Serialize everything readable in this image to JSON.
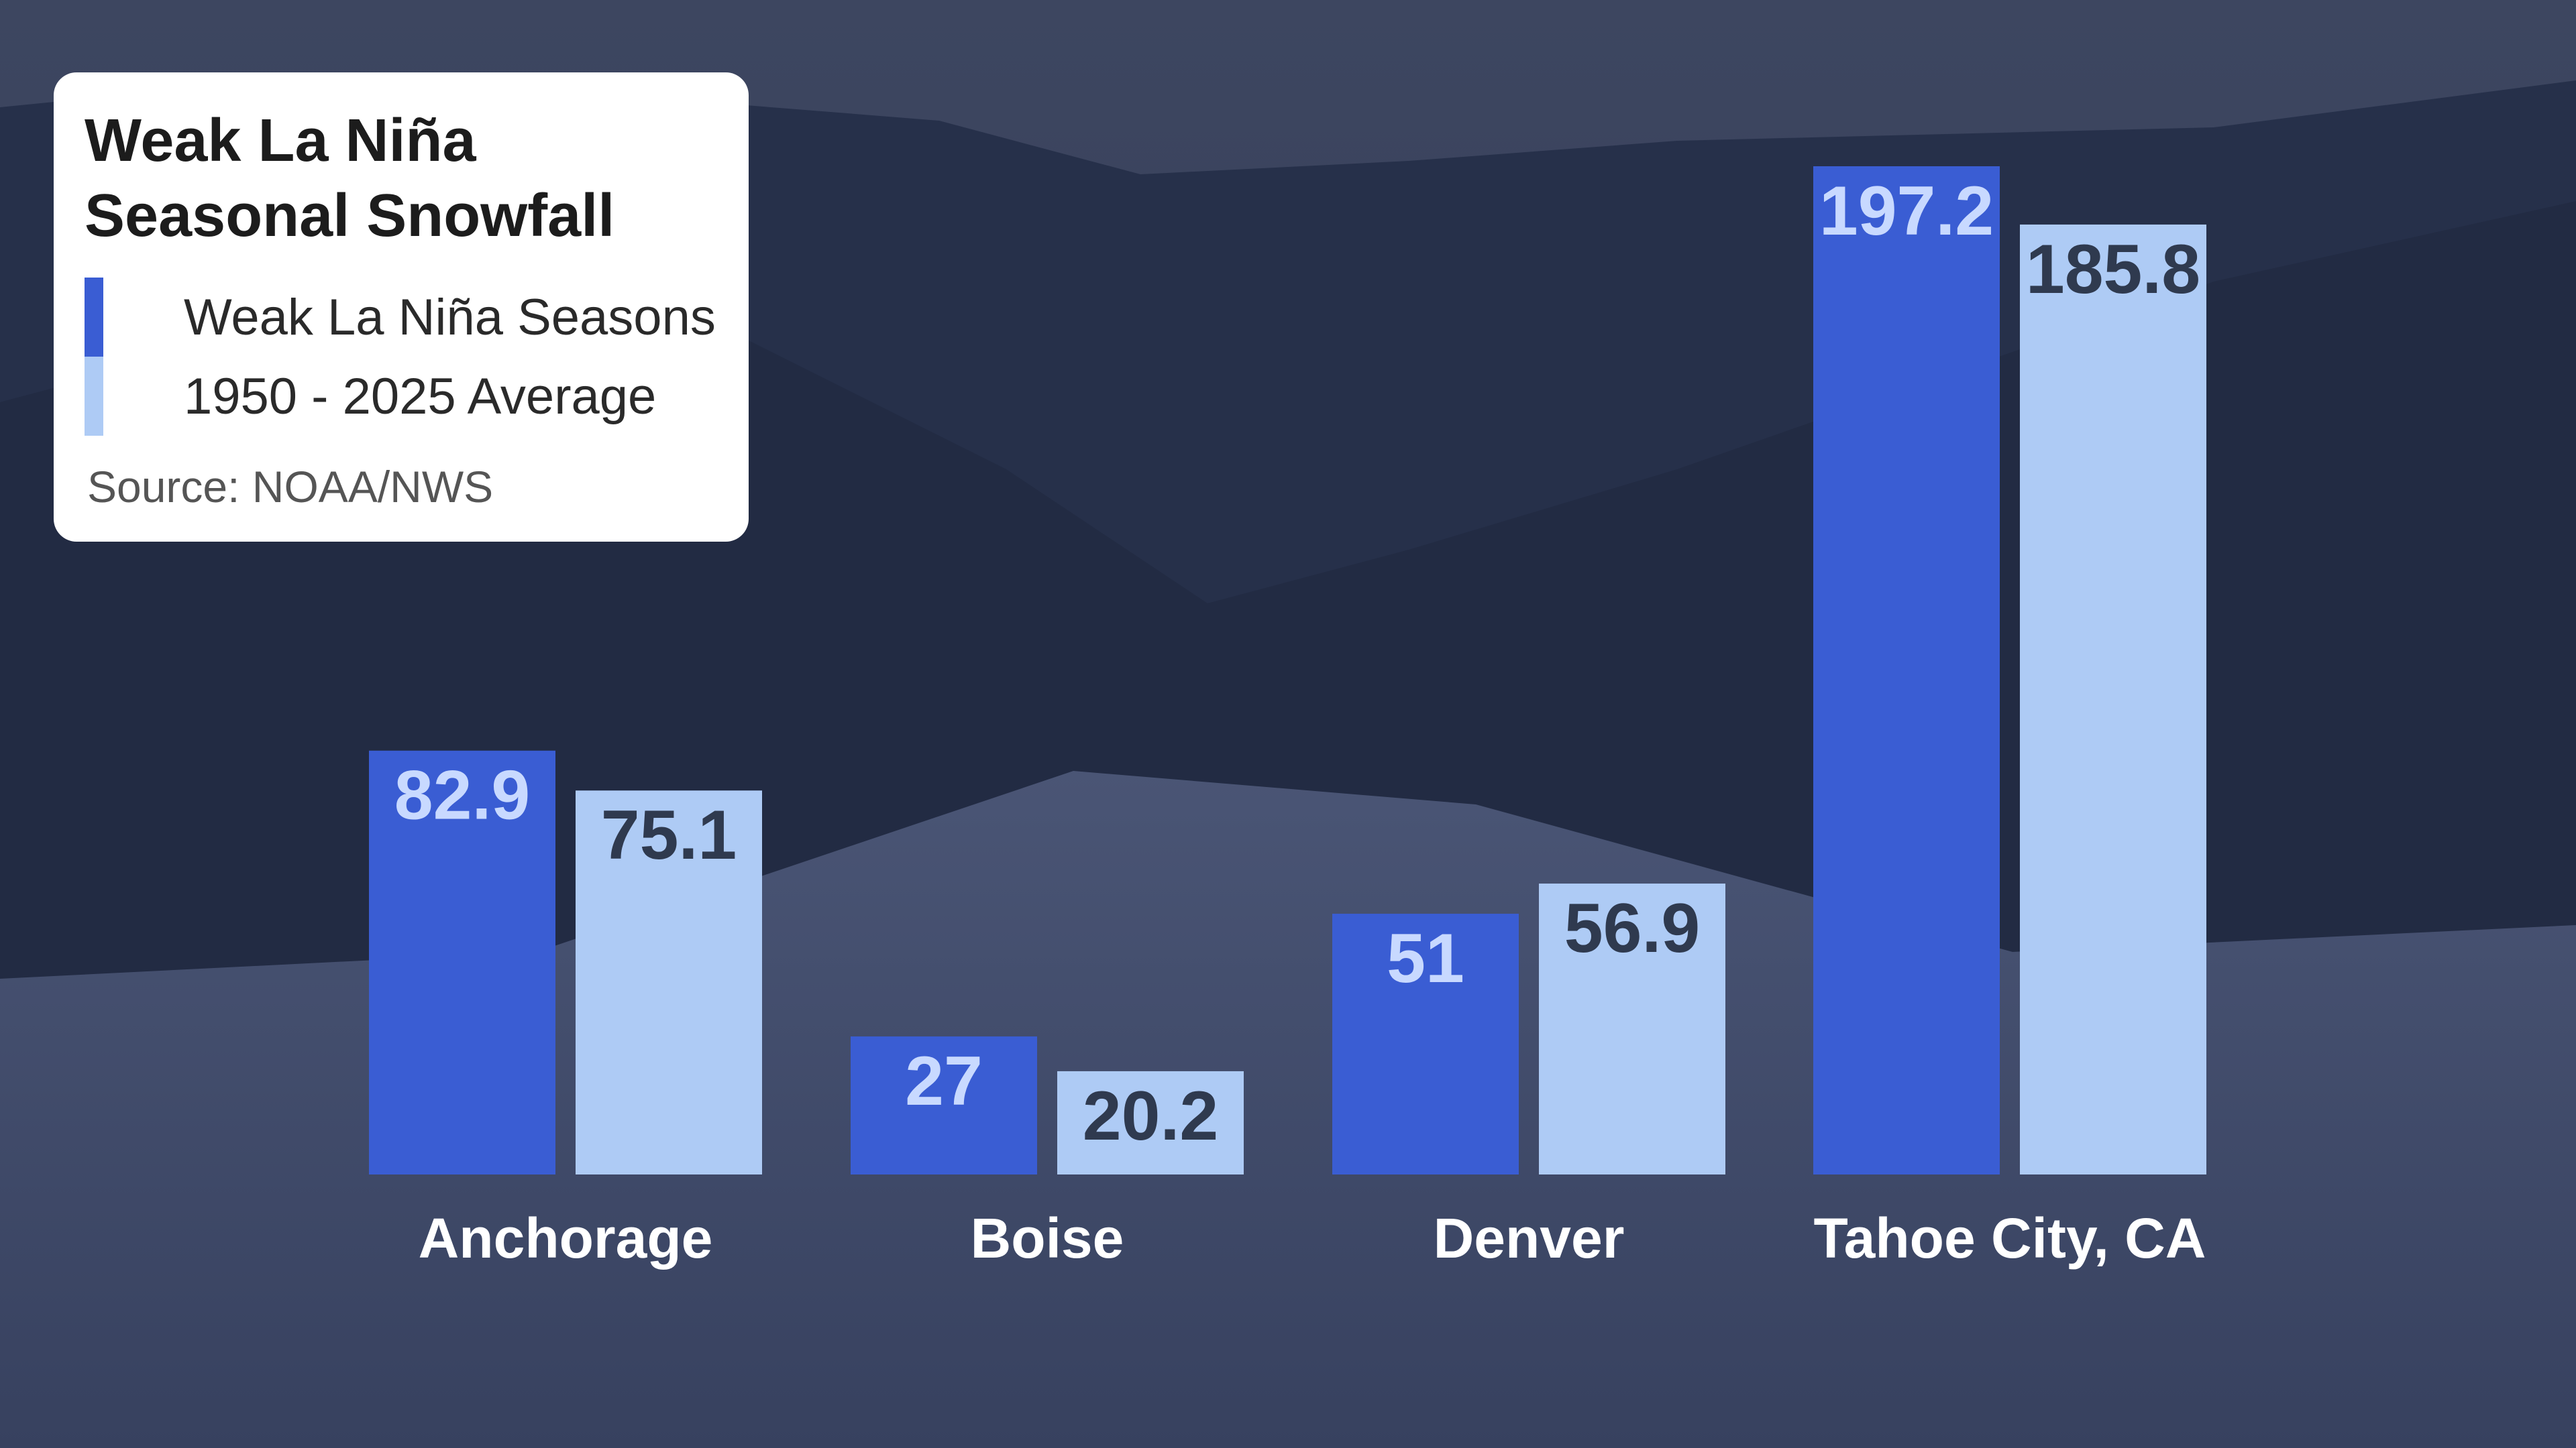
{
  "legend": {
    "title_line1": "Weak La Niña",
    "title_line2": "Seasonal Snowfall",
    "source": "Source: NOAA/NWS"
  },
  "colors": {
    "weak_la_nina": "#3a5dd3",
    "average": "#aecbf5",
    "weak_label": "#c8d9ff",
    "avg_label": "#2f3a4f",
    "category_label": "#ffffff"
  },
  "chart_data": {
    "type": "bar",
    "title": "Weak La Niña Seasonal Snowfall",
    "xlabel": "",
    "ylabel": "",
    "categories": [
      "Anchorage",
      "Boise",
      "Denver",
      "Tahoe City, CA"
    ],
    "series": [
      {
        "name": "Weak La Niña Seasons",
        "values": [
          82.9,
          27,
          51,
          197.2
        ]
      },
      {
        "name": "1950 - 2025 Average",
        "values": [
          75.1,
          20.2,
          56.9,
          185.8
        ]
      }
    ],
    "ylim": [
      0,
      197.2
    ],
    "grid": false,
    "legend": "top-left"
  }
}
